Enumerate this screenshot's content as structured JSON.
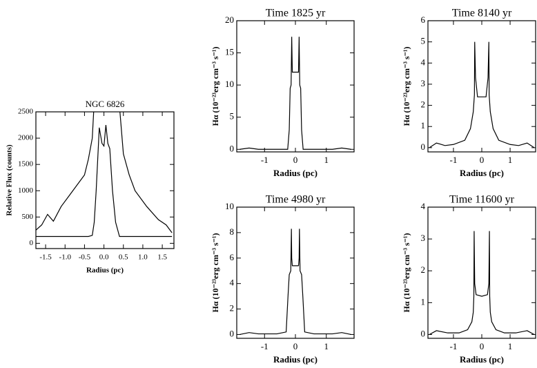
{
  "chart_data": [
    {
      "type": "line",
      "title": "NGC 6826",
      "xlabel": "Radius (pc)",
      "ylabel": "Relative Flux (counts)",
      "x": [
        -1.75,
        -1.6,
        -1.45,
        -1.3,
        -1.1,
        -0.9,
        -0.7,
        -0.5,
        -0.4,
        -0.3,
        -0.25,
        -0.2,
        -0.12,
        -0.05,
        0,
        0.05,
        0.1,
        0.15,
        0.22,
        0.3,
        0.4,
        0.5,
        0.65,
        0.8,
        1.1,
        1.4,
        1.6,
        1.75
      ],
      "series": [
        {
          "color": "#000000",
          "values": [
            250,
            350,
            550,
            420,
            700,
            900,
            1100,
            1300,
            1600,
            2000,
            2700,
            null,
            null,
            null,
            null,
            null,
            null,
            null,
            null,
            null,
            2600,
            1700,
            1300,
            1000,
            700,
            450,
            350,
            200
          ]
        },
        {
          "color": "#000000",
          "values": [
            130,
            130,
            130,
            130,
            130,
            130,
            130,
            130,
            130,
            150,
            400,
            1000,
            2200,
            1900,
            1850,
            2250,
            1900,
            1800,
            1000,
            400,
            130,
            130,
            130,
            130,
            130,
            130,
            130,
            130
          ]
        }
      ],
      "xlim": [
        -1.75,
        1.8
      ],
      "ylim": [
        -100,
        2500
      ],
      "xticks": [
        -1.5,
        {
          "value": -1,
          "label": "-1.0"
        },
        -0.5,
        {
          "value": 0,
          "label": "0.0"
        },
        0.5,
        {
          "value": 1,
          "label": "1.0"
        },
        1.5
      ],
      "yticks": [
        0,
        500,
        1000,
        1500,
        2000,
        2500
      ]
    },
    {
      "type": "line",
      "title": "Time 1825 yr",
      "xlabel": "Radius (pc)",
      "ylabel": "Hα (10⁻²³erg cm⁻³ s⁻¹)",
      "x": [
        -1.8,
        -1.5,
        -1.2,
        -0.6,
        -0.25,
        -0.2,
        -0.17,
        -0.14,
        -0.12,
        -0.1,
        -0.08,
        0,
        0.08,
        0.1,
        0.12,
        0.14,
        0.17,
        0.2,
        0.25,
        0.6,
        1.2,
        1.5,
        1.8
      ],
      "series": [
        {
          "color": "#000000",
          "values": [
            0,
            0.2,
            0,
            0,
            0,
            3,
            9.5,
            10,
            17.5,
            12,
            12,
            12,
            12,
            12,
            17.5,
            10,
            9.5,
            3,
            0,
            0,
            0,
            0.2,
            0
          ]
        }
      ],
      "xlim": [
        -1.9,
        1.9
      ],
      "ylim": [
        -0.4,
        20
      ],
      "xticks": [
        -1,
        0,
        1
      ],
      "yticks": [
        0,
        5,
        10,
        15,
        20
      ]
    },
    {
      "type": "line",
      "title": "Time 8140 yr",
      "xlabel": "Radius (pc)",
      "ylabel": "Hα (10⁻²³erg cm⁻³ s⁻¹)",
      "x": [
        -1.85,
        -1.6,
        -1.3,
        -1.0,
        -0.6,
        -0.4,
        -0.3,
        -0.26,
        -0.25,
        -0.22,
        -0.15,
        0,
        0.15,
        0.22,
        0.25,
        0.26,
        0.3,
        0.4,
        0.6,
        1.0,
        1.3,
        1.6,
        1.85
      ],
      "series": [
        {
          "color": "#000000",
          "values": [
            0,
            0.22,
            0.1,
            0.15,
            0.35,
            0.9,
            1.7,
            2.5,
            5.0,
            3.3,
            2.4,
            2.4,
            2.4,
            3.3,
            5.0,
            2.5,
            1.7,
            0.9,
            0.35,
            0.15,
            0.1,
            0.22,
            0
          ]
        }
      ],
      "xlim": [
        -1.9,
        1.9
      ],
      "ylim": [
        -0.2,
        6
      ],
      "xticks": [
        -1,
        0,
        1
      ],
      "yticks": [
        0,
        1,
        2,
        3,
        4,
        5,
        6
      ]
    },
    {
      "type": "line",
      "title": "Time 4980 yr",
      "xlabel": "Radius (pc)",
      "ylabel": "Hα (10⁻²³erg cm⁻³ s⁻¹)",
      "x": [
        -1.8,
        -1.5,
        -1.2,
        -0.6,
        -0.3,
        -0.24,
        -0.2,
        -0.15,
        -0.13,
        -0.12,
        -0.1,
        0,
        0.1,
        0.12,
        0.13,
        0.15,
        0.2,
        0.24,
        0.3,
        0.6,
        1.2,
        1.5,
        1.8
      ],
      "series": [
        {
          "color": "#000000",
          "values": [
            0,
            0.15,
            0.05,
            0.05,
            0.2,
            3,
            4.7,
            5,
            8.3,
            6,
            5.4,
            5.4,
            5.4,
            6,
            8.3,
            5,
            4.7,
            3,
            0.2,
            0.05,
            0.05,
            0.15,
            0
          ]
        }
      ],
      "xlim": [
        -1.9,
        1.9
      ],
      "ylim": [
        -0.3,
        10
      ],
      "xticks": [
        -1,
        0,
        1
      ],
      "yticks": [
        0,
        2,
        4,
        6,
        8,
        10
      ]
    },
    {
      "type": "line",
      "title": "Time 11600 yr",
      "xlabel": "Radius (pc)",
      "ylabel": "Hα (10⁻²³erg cm⁻³ s⁻¹)",
      "x": [
        -1.85,
        -1.6,
        -1.2,
        -0.8,
        -0.5,
        -0.35,
        -0.3,
        -0.28,
        -0.27,
        -0.25,
        -0.2,
        0,
        0.2,
        0.25,
        0.27,
        0.28,
        0.3,
        0.35,
        0.5,
        0.8,
        1.2,
        1.6,
        1.85
      ],
      "series": [
        {
          "color": "#000000",
          "values": [
            0,
            0.12,
            0.05,
            0.05,
            0.15,
            0.4,
            0.7,
            1.2,
            3.25,
            1.6,
            1.25,
            1.2,
            1.25,
            1.6,
            3.25,
            1.2,
            0.7,
            0.4,
            0.15,
            0.05,
            0.05,
            0.12,
            0
          ]
        }
      ],
      "xlim": [
        -1.9,
        1.9
      ],
      "ylim": [
        -0.12,
        4
      ],
      "xticks": [
        -1,
        0,
        1
      ],
      "yticks": [
        0,
        1,
        2,
        3,
        4
      ]
    }
  ]
}
